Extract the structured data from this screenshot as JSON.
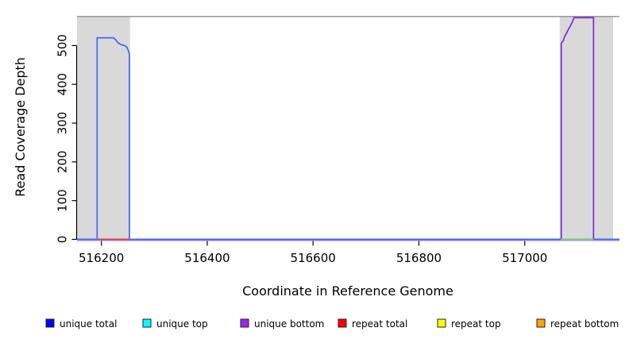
{
  "chart_data": {
    "type": "line",
    "title": "",
    "xlabel": "Coordinate in Reference Genome",
    "ylabel": "Read Coverage Depth",
    "xlim": [
      516154,
      517179
    ],
    "ylim": [
      0,
      594
    ],
    "x_ticks": [
      516200,
      516400,
      516600,
      516800,
      517000
    ],
    "y_ticks": [
      0,
      100,
      200,
      300,
      400,
      500
    ],
    "grid": false,
    "legend_position": "bottom",
    "axis_color": "#000000",
    "shaded_regions": [
      {
        "x1": 516154,
        "x2": 516254,
        "top": 575,
        "color": "#d9d9d9"
      },
      {
        "x1": 517066,
        "x2": 517167,
        "top": 575,
        "color": "#d9d9d9"
      }
    ],
    "top_boundary_line": {
      "y": 575,
      "color": "#999999"
    },
    "baseline_underlay": {
      "y": 0,
      "color": "#b4a0ec"
    },
    "series": [
      {
        "name": "unique bottom",
        "color": "#7a2be0",
        "points": [
          [
            516154,
            0
          ],
          [
            517069,
            0
          ],
          [
            517069,
            505
          ],
          [
            517071,
            510
          ],
          [
            517073,
            513
          ],
          [
            517075,
            522
          ],
          [
            517077,
            527
          ],
          [
            517080,
            535
          ],
          [
            517083,
            543
          ],
          [
            517086,
            550
          ],
          [
            517090,
            561
          ],
          [
            517093,
            572
          ],
          [
            517130,
            572
          ],
          [
            517130,
            0
          ],
          [
            517179,
            0
          ]
        ]
      },
      {
        "name": "unique total",
        "color": "#3a6af0",
        "points": [
          [
            516154,
            0
          ],
          [
            516192,
            0
          ],
          [
            516192,
            520
          ],
          [
            516223,
            520
          ],
          [
            516227,
            515
          ],
          [
            516231,
            508
          ],
          [
            516236,
            503
          ],
          [
            516244,
            500
          ],
          [
            516248,
            496
          ],
          [
            516251,
            487
          ],
          [
            516253,
            478
          ],
          [
            516253,
            0
          ],
          [
            517179,
            0
          ]
        ]
      },
      {
        "name": "repeat total zero segment",
        "color": "#e23b3b",
        "points": [
          [
            516192,
            0
          ],
          [
            516253,
            0
          ]
        ]
      },
      {
        "name": "unlabeled green zero segment",
        "color": "#6fcf6f",
        "points": [
          [
            517068,
            0
          ],
          [
            517130,
            0
          ]
        ]
      }
    ],
    "legend": [
      {
        "label": "unique total",
        "color": "#0000ff"
      },
      {
        "label": "unique top",
        "color": "#00ffff"
      },
      {
        "label": "unique bottom",
        "color": "#a020f0"
      },
      {
        "label": "repeat total",
        "color": "#ff0000"
      },
      {
        "label": "repeat top",
        "color": "#ffff00"
      },
      {
        "label": "repeat bottom",
        "color": "#ffa500"
      }
    ]
  }
}
